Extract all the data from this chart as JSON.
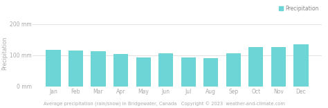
{
  "months": [
    "Jan",
    "Feb",
    "Mar",
    "Apr",
    "May",
    "Jun",
    "Jul",
    "Aug",
    "Sep",
    "Oct",
    "Nov",
    "Dec"
  ],
  "values": [
    118,
    115,
    114,
    103,
    93,
    106,
    93,
    91,
    107,
    127,
    126,
    136
  ],
  "bar_color": "#6dd5d5",
  "background_color": "#ffffff",
  "grid_color": "#dddddd",
  "ylabel": "Precipitation",
  "xlabel": "Average precipitation (rain/snow) in Bridgewater, Canada   Copyright © 2023  weather-and-climate.com",
  "yticks": [
    0,
    100,
    200
  ],
  "ytick_labels": [
    "0 mm",
    "100 mm",
    "200 mm"
  ],
  "ylim": [
    0,
    215
  ],
  "legend_label": "Precipitation",
  "legend_color": "#6dd5d5",
  "ylabel_fontsize": 5.5,
  "tick_fontsize": 5.5,
  "xlabel_fontsize": 4.8,
  "legend_fontsize": 5.5,
  "bar_width": 0.65
}
